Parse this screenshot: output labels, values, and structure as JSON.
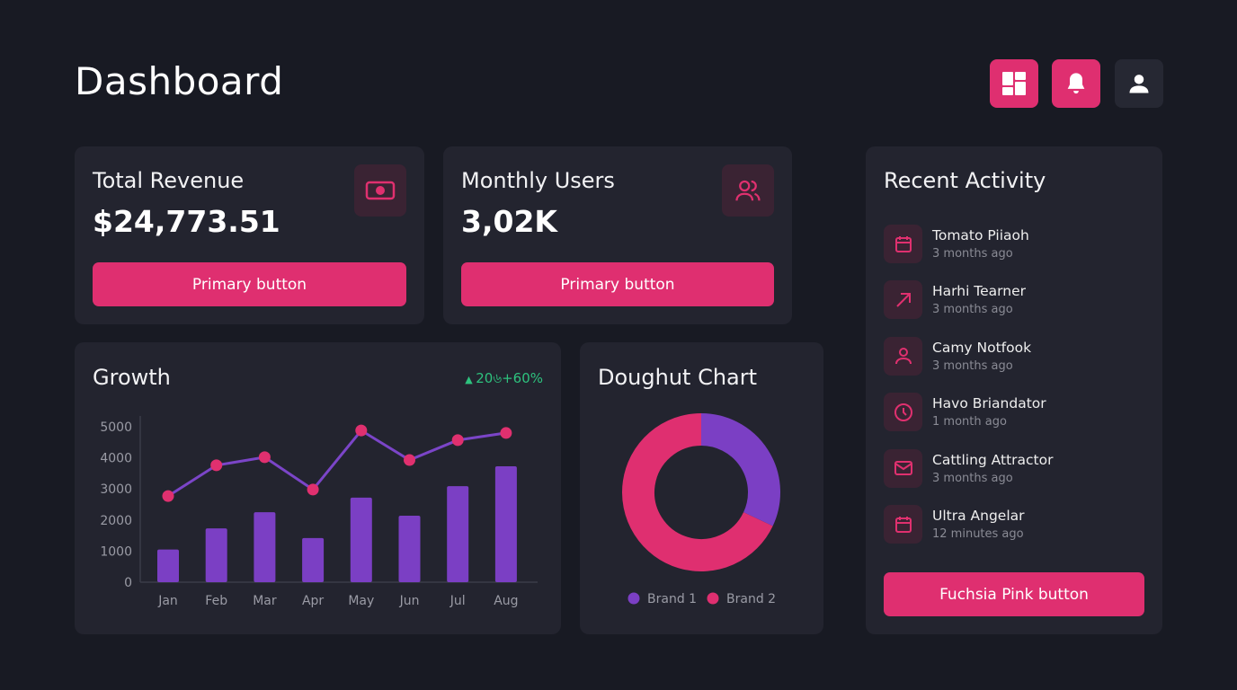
{
  "header": {
    "title": "Dashboard",
    "buttons": [
      {
        "icon": "dashboard-icon"
      },
      {
        "icon": "bell-icon"
      },
      {
        "icon": "user-icon"
      }
    ]
  },
  "revenue": {
    "label": "Total Revenue",
    "value": "$24,773.51",
    "button": "Primary button",
    "icon": "money-icon"
  },
  "users": {
    "label": "Monthly Users",
    "value": "3,02K",
    "button": "Primary button",
    "icon": "users-icon"
  },
  "growth": {
    "title": "Growth",
    "badge": "20৬+60%"
  },
  "doughnut": {
    "title": "Doughut Chart"
  },
  "activity": {
    "title": "Recent Activity",
    "button": "Fuchsia Pink button",
    "items": [
      {
        "name": "Tomato Piiaoh",
        "time": "3 months ago",
        "icon": "calendar-icon"
      },
      {
        "name": "Harhi Tearner",
        "time": "3 months ago",
        "icon": "arrow-up-right-icon"
      },
      {
        "name": "Camy Notfook",
        "time": "3 months ago",
        "icon": "user-icon"
      },
      {
        "name": "Havo Briandator",
        "time": "1 month ago",
        "icon": "clock-icon"
      },
      {
        "name": "Cattling Attractor",
        "time": "3 months ago",
        "icon": "mail-icon"
      },
      {
        "name": "Ultra Angelar",
        "time": "12 minutes ago",
        "icon": "calendar-icon"
      }
    ]
  },
  "colors": {
    "pink": "#df2f70",
    "purple": "#7b3fc4",
    "green": "#2ec27e",
    "background": "#181a23",
    "card": "#23242f"
  },
  "chart_data": [
    {
      "type": "bar+line",
      "categories": [
        "Jan",
        "Feb",
        "Mar",
        "Apr",
        "May",
        "Jun",
        "Jul",
        "Aug"
      ],
      "ylim": [
        0,
        5000
      ],
      "yticks": [
        "0",
        "1000",
        "2000",
        "3000",
        "4000",
        "5000"
      ],
      "series": [
        {
          "type": "bar",
          "values": [
            1050,
            1730,
            2250,
            1420,
            2720,
            2140,
            3090,
            3730
          ]
        },
        {
          "type": "line",
          "values": [
            2770,
            3760,
            4020,
            2980,
            4880,
            3930,
            4570,
            4800
          ]
        }
      ]
    },
    {
      "type": "pie",
      "donut": true,
      "legend": "bottom",
      "series": [
        {
          "name": "Brand 1",
          "value": 32
        },
        {
          "name": "Brand 2",
          "value": 68
        }
      ]
    }
  ]
}
